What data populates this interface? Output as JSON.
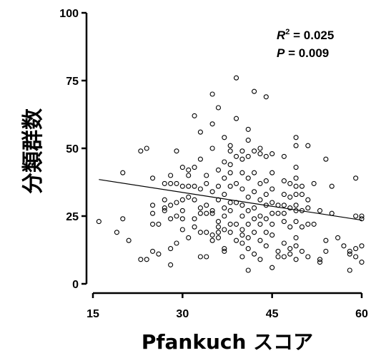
{
  "chart_data": {
    "type": "scatter",
    "xlabel": "Pfankuch スコア",
    "ylabel": "分類群数",
    "xlim": [
      15,
      60
    ],
    "ylim": [
      0,
      100
    ],
    "xticks": [
      15,
      30,
      45,
      60
    ],
    "yticks": [
      0,
      25,
      50,
      75,
      100
    ],
    "annotation": {
      "r2_label": "R",
      "r2_superscript": "2",
      "r2_value": " = 0.025",
      "p_label": "P",
      "p_value": " = 0.009"
    },
    "trendline": {
      "x": [
        16,
        60
      ],
      "y": [
        38.5,
        23.5
      ]
    },
    "points": [
      [
        16,
        23
      ],
      [
        19,
        19
      ],
      [
        20,
        41
      ],
      [
        20,
        24
      ],
      [
        21,
        16
      ],
      [
        23,
        9
      ],
      [
        23,
        49
      ],
      [
        24,
        50
      ],
      [
        24,
        9
      ],
      [
        25,
        39
      ],
      [
        25,
        29
      ],
      [
        25,
        26
      ],
      [
        25,
        22
      ],
      [
        25,
        12
      ],
      [
        26,
        22
      ],
      [
        26,
        11
      ],
      [
        27,
        31
      ],
      [
        27,
        37
      ],
      [
        27,
        27
      ],
      [
        27,
        28
      ],
      [
        28,
        40
      ],
      [
        28,
        37
      ],
      [
        28,
        24
      ],
      [
        28,
        29
      ],
      [
        28,
        7
      ],
      [
        28,
        13
      ],
      [
        29,
        37
      ],
      [
        29,
        30
      ],
      [
        29,
        25
      ],
      [
        29,
        15
      ],
      [
        29,
        49
      ],
      [
        30,
        31
      ],
      [
        30,
        36
      ],
      [
        30,
        24
      ],
      [
        30,
        20
      ],
      [
        30,
        43
      ],
      [
        30,
        27
      ],
      [
        31,
        42
      ],
      [
        31,
        32
      ],
      [
        31,
        40
      ],
      [
        31,
        17
      ],
      [
        31,
        36
      ],
      [
        32,
        62
      ],
      [
        32,
        36
      ],
      [
        32,
        31
      ],
      [
        32,
        24
      ],
      [
        32,
        21
      ],
      [
        32,
        43
      ],
      [
        33,
        56
      ],
      [
        33,
        46
      ],
      [
        33,
        35
      ],
      [
        33,
        28
      ],
      [
        33,
        19
      ],
      [
        33,
        26
      ],
      [
        33,
        10
      ],
      [
        34,
        40
      ],
      [
        34,
        29
      ],
      [
        34,
        26
      ],
      [
        34,
        19
      ],
      [
        34,
        37
      ],
      [
        34,
        10
      ],
      [
        35,
        70
      ],
      [
        35,
        59
      ],
      [
        35,
        50
      ],
      [
        35,
        34
      ],
      [
        35,
        27
      ],
      [
        35,
        26
      ],
      [
        35,
        18
      ],
      [
        35,
        16
      ],
      [
        36,
        65
      ],
      [
        36,
        42
      ],
      [
        36,
        36
      ],
      [
        36,
        21
      ],
      [
        36,
        17
      ],
      [
        36,
        23
      ],
      [
        36,
        31
      ],
      [
        36,
        19
      ],
      [
        37,
        54
      ],
      [
        37,
        45
      ],
      [
        37,
        39
      ],
      [
        37,
        33
      ],
      [
        37,
        28
      ],
      [
        37,
        25
      ],
      [
        37,
        20
      ],
      [
        37,
        13
      ],
      [
        37,
        12
      ],
      [
        38,
        51
      ],
      [
        38,
        49
      ],
      [
        38,
        44
      ],
      [
        38,
        41
      ],
      [
        38,
        36
      ],
      [
        38,
        30
      ],
      [
        38,
        27
      ],
      [
        38,
        22
      ],
      [
        38,
        19
      ],
      [
        39,
        76
      ],
      [
        39,
        61
      ],
      [
        39,
        47
      ],
      [
        39,
        37
      ],
      [
        39,
        30
      ],
      [
        39,
        22
      ],
      [
        39,
        16
      ],
      [
        40,
        49
      ],
      [
        40,
        46
      ],
      [
        40,
        41
      ],
      [
        40,
        35
      ],
      [
        40,
        29
      ],
      [
        40,
        25
      ],
      [
        40,
        20
      ],
      [
        40,
        18
      ],
      [
        40,
        15
      ],
      [
        40,
        10
      ],
      [
        41,
        57
      ],
      [
        41,
        53
      ],
      [
        41,
        47
      ],
      [
        41,
        39
      ],
      [
        41,
        32
      ],
      [
        41,
        27
      ],
      [
        41,
        22
      ],
      [
        41,
        17
      ],
      [
        41,
        13
      ],
      [
        41,
        5
      ],
      [
        42,
        71
      ],
      [
        42,
        49
      ],
      [
        42,
        41
      ],
      [
        42,
        34
      ],
      [
        42,
        28
      ],
      [
        42,
        24
      ],
      [
        42,
        19
      ],
      [
        42,
        11
      ],
      [
        43,
        50
      ],
      [
        43,
        48
      ],
      [
        43,
        37
      ],
      [
        43,
        31
      ],
      [
        43,
        25
      ],
      [
        43,
        22
      ],
      [
        43,
        16
      ],
      [
        43,
        9
      ],
      [
        44,
        69
      ],
      [
        44,
        47
      ],
      [
        44,
        38
      ],
      [
        44,
        33
      ],
      [
        44,
        29
      ],
      [
        44,
        24
      ],
      [
        44,
        19
      ],
      [
        44,
        14
      ],
      [
        45,
        48
      ],
      [
        45,
        41
      ],
      [
        45,
        35
      ],
      [
        45,
        30
      ],
      [
        45,
        26
      ],
      [
        45,
        22
      ],
      [
        45,
        18
      ],
      [
        45,
        6
      ],
      [
        46,
        29
      ],
      [
        46,
        26
      ],
      [
        46,
        12
      ],
      [
        46,
        10
      ],
      [
        47,
        47
      ],
      [
        47,
        38
      ],
      [
        47,
        33
      ],
      [
        47,
        29
      ],
      [
        47,
        26
      ],
      [
        47,
        23
      ],
      [
        47,
        15
      ],
      [
        47,
        10
      ],
      [
        48,
        37
      ],
      [
        48,
        32
      ],
      [
        48,
        28
      ],
      [
        48,
        21
      ],
      [
        48,
        13
      ],
      [
        48,
        11
      ],
      [
        49,
        54
      ],
      [
        49,
        51
      ],
      [
        49,
        43
      ],
      [
        49,
        39
      ],
      [
        49,
        36
      ],
      [
        49,
        33
      ],
      [
        49,
        29
      ],
      [
        49,
        27
      ],
      [
        49,
        23
      ],
      [
        49,
        17
      ],
      [
        49,
        14
      ],
      [
        49,
        9
      ],
      [
        50,
        36
      ],
      [
        50,
        33
      ],
      [
        50,
        27
      ],
      [
        50,
        21
      ],
      [
        50,
        12
      ],
      [
        51,
        51
      ],
      [
        51,
        31
      ],
      [
        51,
        28
      ],
      [
        51,
        22
      ],
      [
        51,
        10
      ],
      [
        52,
        37
      ],
      [
        52,
        22
      ],
      [
        53,
        27
      ],
      [
        53,
        9
      ],
      [
        53,
        8
      ],
      [
        54,
        46
      ],
      [
        54,
        16
      ],
      [
        54,
        12
      ],
      [
        55,
        36
      ],
      [
        55,
        26
      ],
      [
        56,
        17
      ],
      [
        57,
        14
      ],
      [
        58,
        5
      ],
      [
        58,
        12
      ],
      [
        58,
        11
      ],
      [
        59,
        39
      ],
      [
        59,
        25
      ],
      [
        59,
        13
      ],
      [
        59,
        10
      ],
      [
        60,
        25
      ],
      [
        60,
        24
      ],
      [
        60,
        14
      ],
      [
        60,
        8
      ]
    ]
  }
}
